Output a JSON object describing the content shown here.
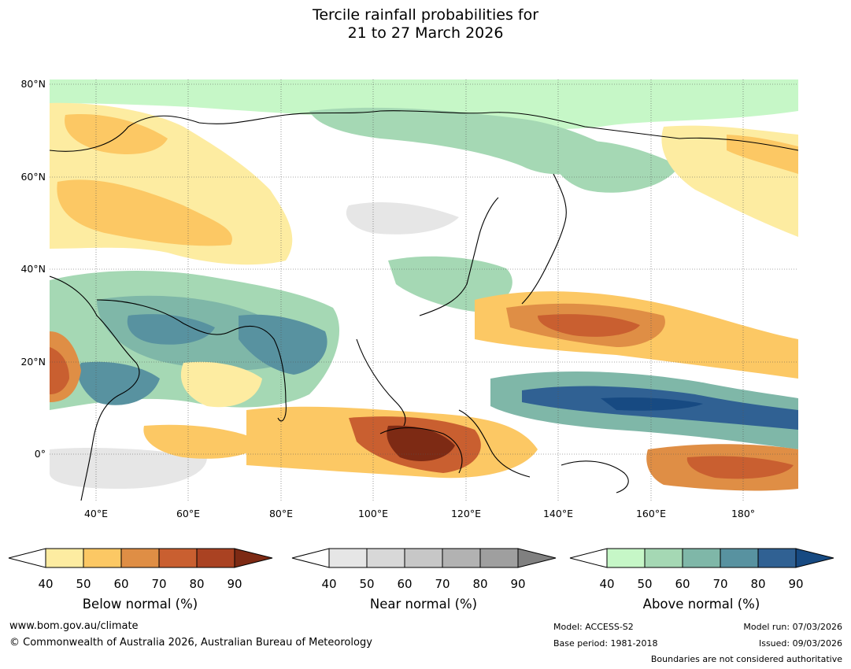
{
  "title_line1": "Tercile rainfall probabilities for",
  "title_line2": "21 to 27 March 2026",
  "lat_labels": [
    "80°N",
    "60°N",
    "40°N",
    "20°N",
    "0°"
  ],
  "lon_labels": [
    "40°E",
    "60°E",
    "80°E",
    "100°E",
    "120°E",
    "140°E",
    "160°E",
    "180°"
  ],
  "colorbars": {
    "below": {
      "label": "Below normal (%)",
      "ticks": [
        "40",
        "50",
        "60",
        "70",
        "80",
        "90"
      ],
      "colors": [
        "#fdeca1",
        "#fcc864",
        "#df8e45",
        "#c95f30",
        "#aa4222",
        "#7d2a14"
      ]
    },
    "near": {
      "label": "Near normal (%)",
      "ticks": [
        "40",
        "50",
        "60",
        "70",
        "80",
        "90"
      ],
      "colors": [
        "#e6e6e6",
        "#d8d8d8",
        "#c7c7c7",
        "#b2b2b2",
        "#9f9f9f",
        "#808080"
      ]
    },
    "above": {
      "label": "Above normal (%)",
      "ticks": [
        "40",
        "50",
        "60",
        "70",
        "80",
        "90"
      ],
      "colors": [
        "#c6f7c7",
        "#a5d8b4",
        "#7fb7a8",
        "#5892a0",
        "#306193",
        "#174a82"
      ]
    }
  },
  "footer": {
    "url": "www.bom.gov.au/climate",
    "copyright": "© Commonwealth of Australia 2026, Australian Bureau of Meteorology",
    "model": "Model: ACCESS-S2",
    "base_period": "Base period: 1981-2018",
    "model_run": "Model run: 07/03/2026",
    "issued": "Issued: 09/03/2026",
    "disclaimer": "Boundaries are not considered authoritative"
  }
}
